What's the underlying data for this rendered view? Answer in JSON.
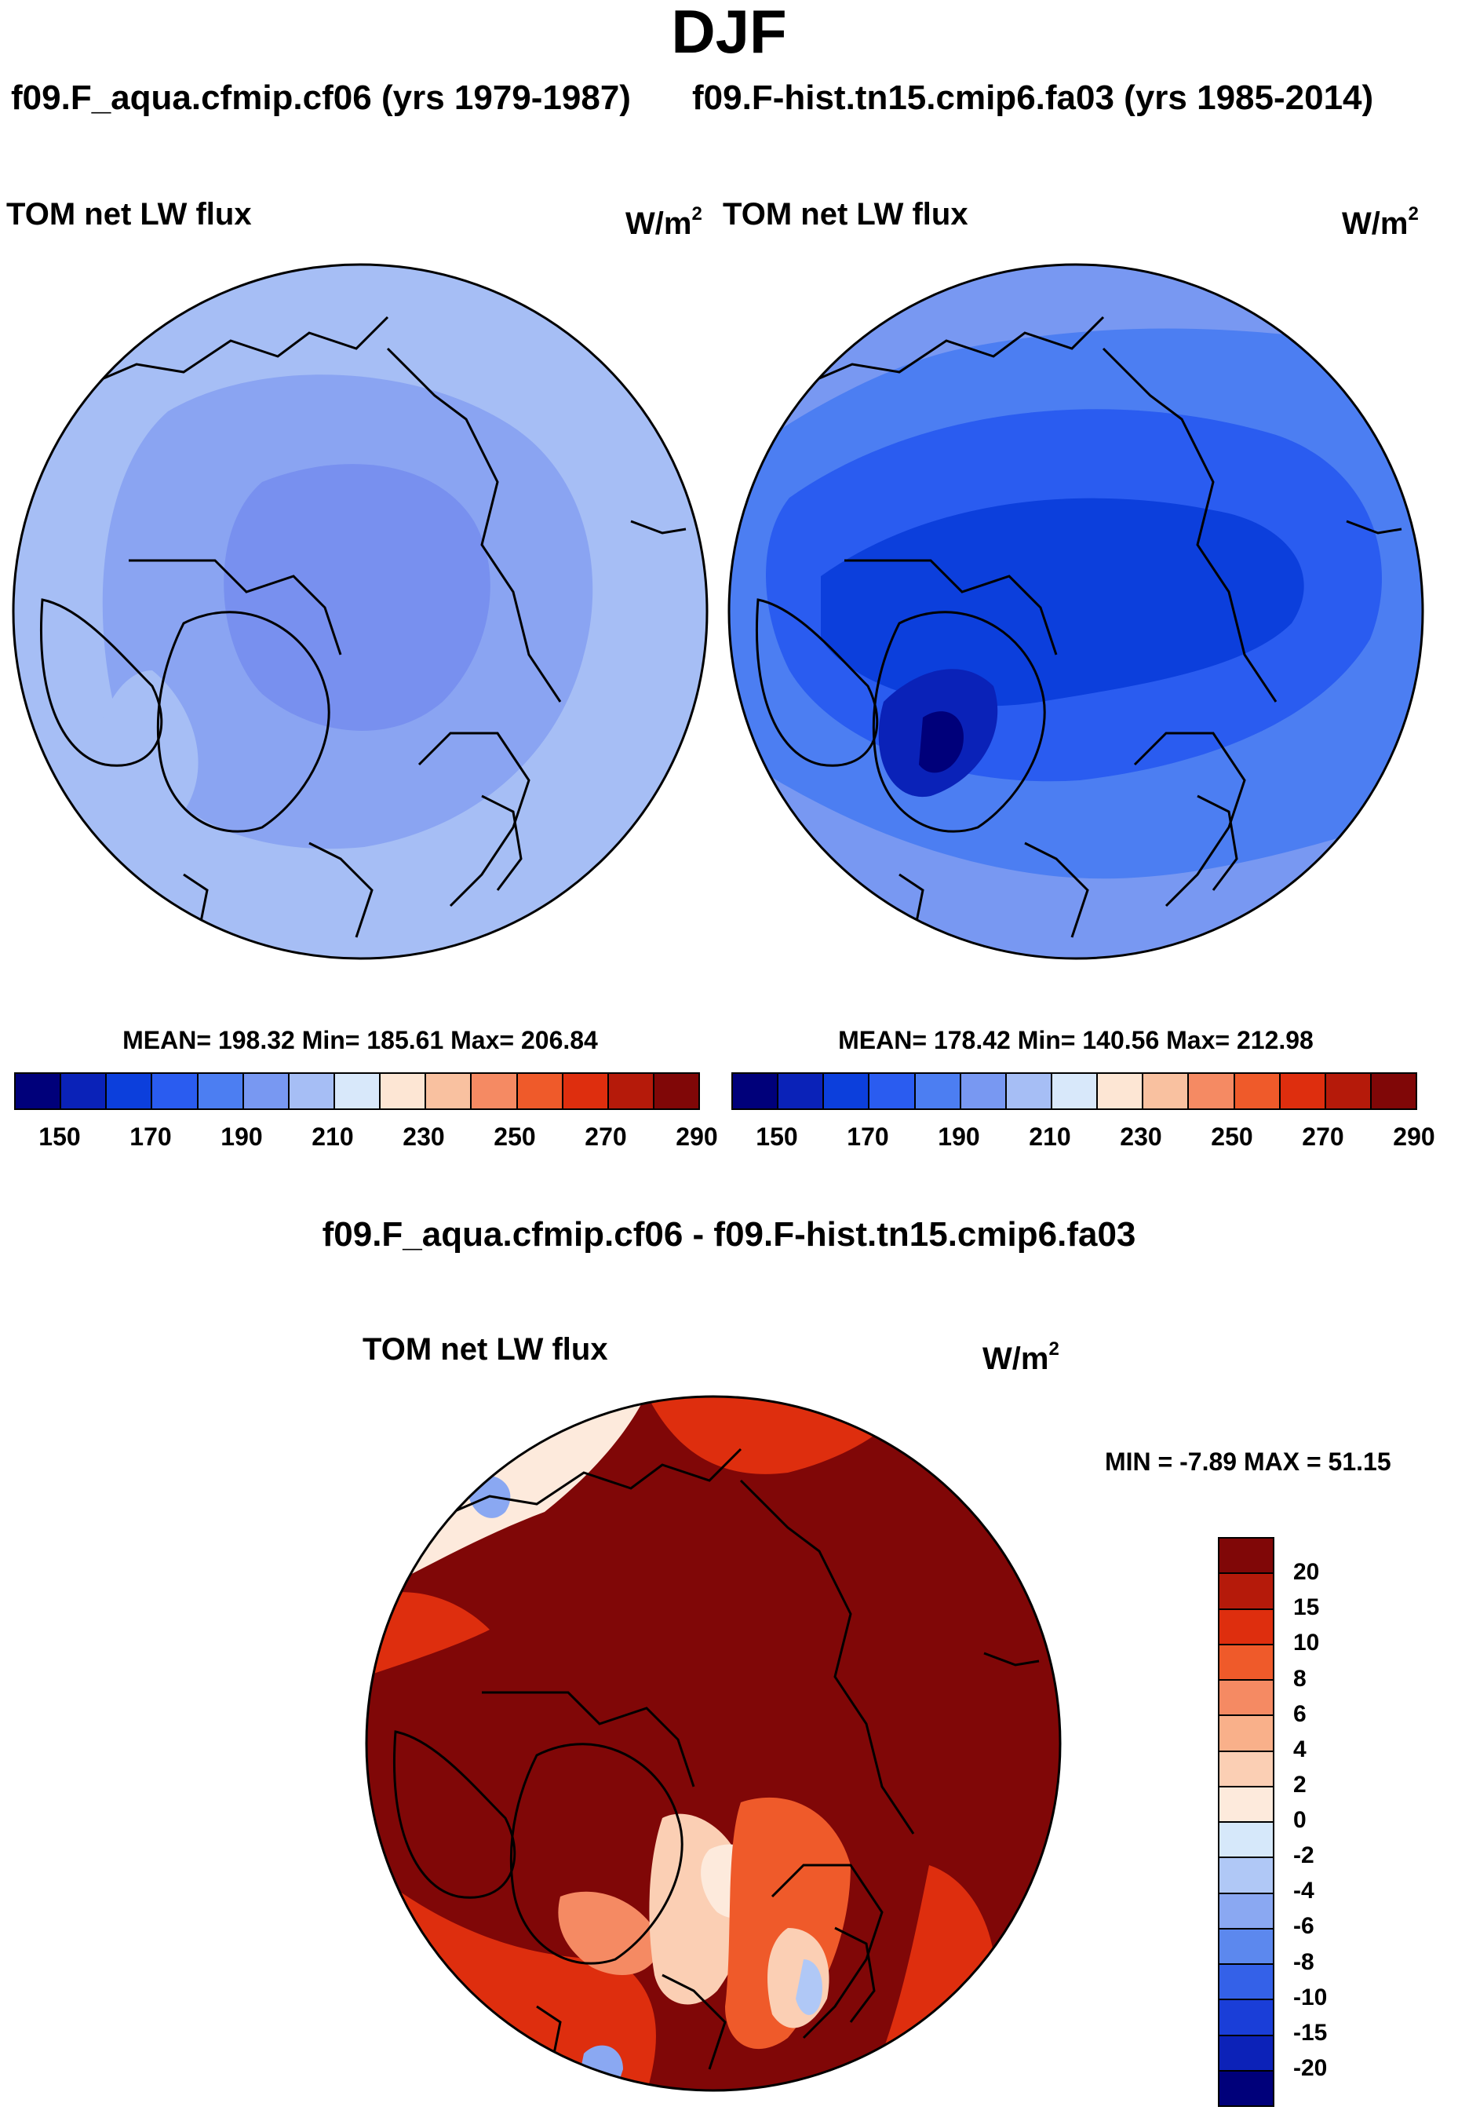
{
  "season": "DJF",
  "panels": [
    {
      "case_title": "f09.F_aqua.cfmip.cf06 (yrs 1979-1987)",
      "variable": "TOM net LW flux",
      "units": "W/m",
      "units_exp": "2",
      "stats": "MEAN= 198.32  Min= 185.61  Max= 206.84"
    },
    {
      "case_title": "f09.F-hist.tn15.cmip6.fa03 (yrs 1985-2014)",
      "variable": "TOM net LW flux",
      "units": "W/m",
      "units_exp": "2",
      "stats": "MEAN= 178.42  Min= 140.56  Max= 212.98"
    }
  ],
  "abs_colorbar": {
    "colors": [
      "#00007a",
      "#0a22b8",
      "#0c3fdc",
      "#2a5cf0",
      "#4c7ef2",
      "#7898f2",
      "#a6bef5",
      "#d8e8fa",
      "#fde6d4",
      "#f9c1a0",
      "#f58a63",
      "#ef5a2a",
      "#de2e0e",
      "#b51a0a",
      "#800707"
    ],
    "tick_labels": [
      "150",
      "170",
      "190",
      "210",
      "230",
      "250",
      "270",
      "290"
    ]
  },
  "diff": {
    "title": "f09.F_aqua.cfmip.cf06 - f09.F-hist.tn15.cmip6.fa03",
    "variable": "TOM net LW flux",
    "units": "W/m",
    "units_exp": "2",
    "minmax": "MIN =  -7.89 MAX =  51.15",
    "colors": [
      "#800707",
      "#b51a0a",
      "#de2e0e",
      "#ef5a2a",
      "#f58a63",
      "#f9b08a",
      "#fbcfb4",
      "#fdeadc",
      "#d6e8fa",
      "#b0c8f6",
      "#8aa8f2",
      "#5c88ee",
      "#3461e8",
      "#1a3ed8",
      "#0c22b8",
      "#00007a"
    ],
    "tick_labels": [
      "20",
      "15",
      "10",
      "8",
      "6",
      "4",
      "2",
      "0",
      "-2",
      "-4",
      "-6",
      "-8",
      "-10",
      "-15",
      "-20"
    ]
  }
}
